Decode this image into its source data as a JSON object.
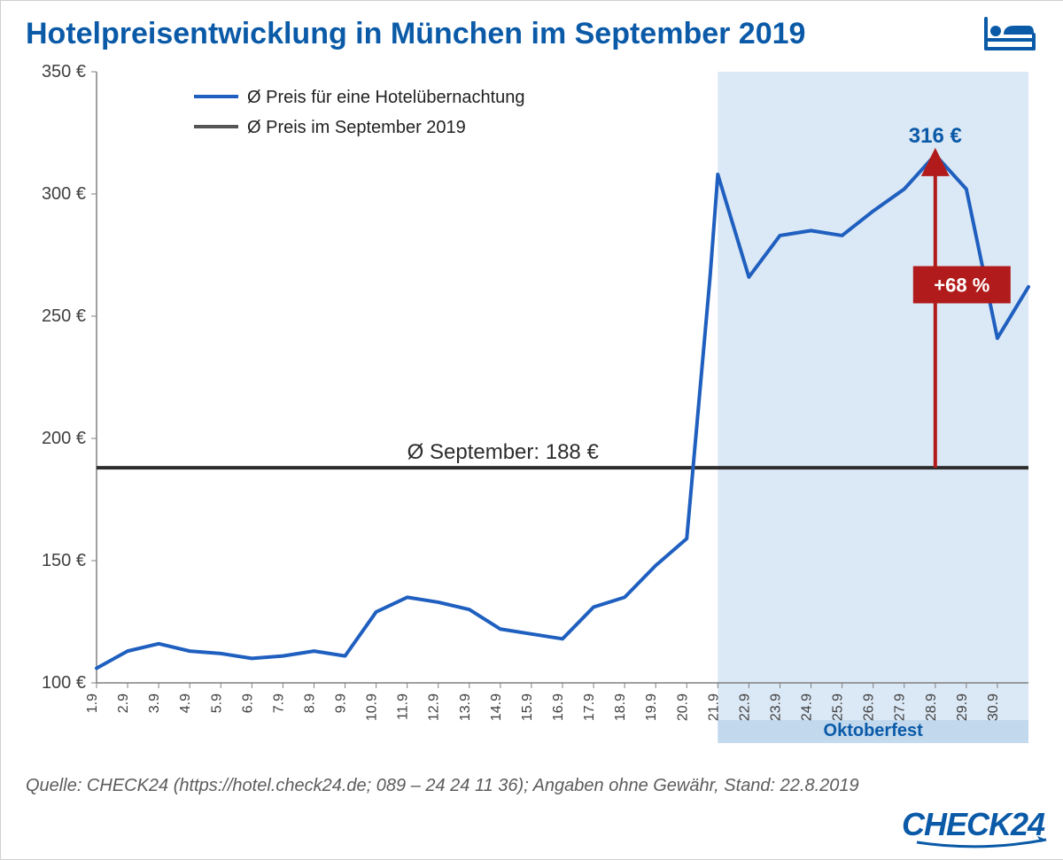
{
  "title": "Hotelpreisentwicklung in München im September 2019",
  "source": "Quelle: CHECK24 (https://hotel.check24.de; 089 – 24 24 11 36); Angaben ohne Gewähr, Stand: 22.8.2019",
  "logo_text": "CHECK24",
  "colors": {
    "title": "#0a5aa8",
    "line_series": "#1f5fbf",
    "avg_line": "#2d2d2d",
    "legend_avg_line": "#555555",
    "axis": "#808080",
    "tick_text": "#404040",
    "chart_bg": "#ffffff",
    "highlight_fill": "#bed6ec",
    "highlight_fill_opacity": 0.85,
    "arrow": "#b11b1b",
    "badge_bg": "#b11b1b",
    "badge_text": "#ffffff",
    "peak_label": "#0a5aa8",
    "annotation_text": "#2d2d2d"
  },
  "legend": {
    "series_label": "Ø Preis für eine Hotelübernachtung",
    "avg_label": "Ø Preis im September 2019",
    "fontsize": 20
  },
  "chart": {
    "type": "line",
    "x_labels": [
      "1.9",
      "2.9",
      "3.9",
      "4.9",
      "5.9",
      "6.9",
      "7.9",
      "8.9",
      "9.9",
      "10.9",
      "11.9",
      "12.9",
      "13.9",
      "14.9",
      "15.9",
      "16.9",
      "17.9",
      "18.9",
      "19.9",
      "20.9",
      "21.9",
      "22.9",
      "23.9",
      "24.9",
      "25.9",
      "26.9",
      "27.9",
      "28.9",
      "29.9",
      "30.9"
    ],
    "y_values": [
      106,
      113,
      116,
      113,
      112,
      110,
      111,
      113,
      111,
      129,
      135,
      133,
      130,
      122,
      120,
      118,
      131,
      135,
      148,
      159,
      266,
      308,
      266,
      283,
      285,
      283,
      293,
      302,
      316,
      302,
      241,
      262
    ],
    "x_index": [
      0,
      1,
      2,
      3,
      4,
      5,
      6,
      7,
      8,
      9,
      10,
      11,
      12,
      13,
      14,
      15,
      16,
      17,
      18,
      19,
      19.75,
      20,
      21,
      22,
      23,
      24,
      25,
      26,
      27,
      28,
      29,
      30
    ],
    "ylim": [
      100,
      350
    ],
    "ytick_step": 50,
    "y_suffix": " €",
    "line_width": 4,
    "avg_value": 188,
    "avg_annotation": "Ø September: 188 €",
    "avg_annotation_fontsize": 24,
    "highlight": {
      "start_index": 20,
      "end_index": 30,
      "label": "Oktoberfest",
      "label_fontsize": 20,
      "label_color": "#0a5aa8",
      "label_weight": "bold"
    },
    "peak": {
      "index_in_values": 28,
      "x_index": 27,
      "value": 316,
      "label": "316 €",
      "label_fontsize": 24,
      "label_weight": "bold"
    },
    "delta": {
      "from_value": 188,
      "to_value": 316,
      "label": "+68 %",
      "at_x_index": 27,
      "label_fontsize": 22,
      "label_weight": "bold"
    },
    "tick_fontsize": 16
  }
}
